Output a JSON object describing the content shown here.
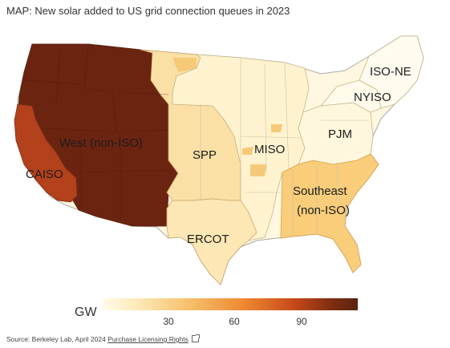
{
  "title": "MAP: New solar added to US grid connection queues in 2023",
  "regions": [
    {
      "id": "west",
      "label": "West (non-ISO)"
    },
    {
      "id": "caiso",
      "label": "CAISO"
    },
    {
      "id": "spp",
      "label": "SPP"
    },
    {
      "id": "miso",
      "label": "MISO"
    },
    {
      "id": "pjm",
      "label": "PJM"
    },
    {
      "id": "nyiso",
      "label": "NYISO"
    },
    {
      "id": "isone",
      "label": "ISO-NE"
    },
    {
      "id": "southeast",
      "label": "Southeast\n(non-ISO)"
    },
    {
      "id": "ercot",
      "label": "ERCOT"
    }
  ],
  "legend": {
    "title": "GW",
    "ticks": [
      "30",
      "60",
      "90"
    ]
  },
  "colors": {
    "west": "#6b2410",
    "caiso": "#b3411c",
    "spp": "#fbe0a6",
    "miso": "#fff3cf",
    "pjm": "#fff7dd",
    "nyiso": "#fffaea",
    "isone": "#fffcef",
    "southeast": "#f9cd7a",
    "ercot": "#fde7b4",
    "border": "#999999"
  },
  "footer": {
    "source": "Source: Berkeley Lab, April 2024",
    "link": "Purchase Licensing Rights"
  }
}
